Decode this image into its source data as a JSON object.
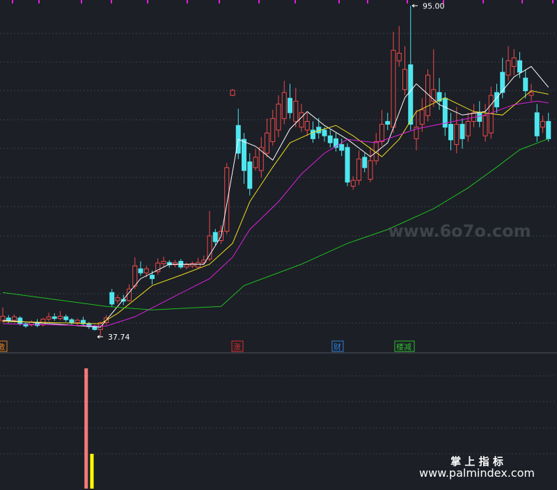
{
  "chart_data": [
    {
      "type": "candlestick",
      "ylim": [
        35.2,
        96.0
      ],
      "up_color": "#f24a4a",
      "down_color": "#4ee6ee",
      "series": {
        "open": [
          40.5,
          41.0,
          40.6,
          41.0,
          40.0,
          39.8,
          40.2,
          39.8,
          40.8,
          41.2,
          40.9,
          41.2,
          40.7,
          40.2,
          40.6,
          40.0,
          39.5,
          39.0,
          40.2,
          45.4,
          44.0,
          44.2,
          44.0,
          46.5,
          49.5,
          48.8,
          48.4,
          49.0,
          50.4,
          50.6,
          50.2,
          50.8,
          49.8,
          50.0,
          49.8,
          50.6,
          51.2,
          55.8,
          54.4,
          56.0,
          79.5,
          74.3,
          71.9,
          68.0,
          67.0,
          66.5,
          69.5,
          71.5,
          73.5,
          75.5,
          79.0,
          75.0,
          74.0,
          73.5,
          73.5,
          74.0,
          73.5,
          72.5,
          72.0,
          71.0,
          70.5,
          63.8,
          64.8,
          68.8,
          65.0,
          68.2,
          71.5,
          75.0,
          74.0,
          85.5,
          80.5,
          84.8,
          72.0,
          74.5,
          76.0,
          78.5,
          80.0,
          79.0,
          74.5,
          71.0,
          74.5,
          72.5,
          75.0,
          76.5,
          72.5,
          73.0,
          80.0,
          83.5,
          83.0,
          84.5,
          85.5,
          82.5,
          79.5,
          76.5,
          74.0,
          75.0
        ],
        "close": [
          41.3,
          40.6,
          41.2,
          40.0,
          39.6,
          40.3,
          39.7,
          40.8,
          41.2,
          40.9,
          41.3,
          40.7,
          40.2,
          40.6,
          40.0,
          39.5,
          39.0,
          40.2,
          41.0,
          43.4,
          44.5,
          43.9,
          46.0,
          50.0,
          48.8,
          49.5,
          47.8,
          50.5,
          50.8,
          50.2,
          50.6,
          49.8,
          50.2,
          50.4,
          50.6,
          51.0,
          55.2,
          54.2,
          56.0,
          67.0,
          80.4,
          69.5,
          66.5,
          63.4,
          68.8,
          70.5,
          73.0,
          75.5,
          78.0,
          80.0,
          76.5,
          78.5,
          76.5,
          75.0,
          72.0,
          73.0,
          72.5,
          71.3,
          70.5,
          70.0,
          64.5,
          64.8,
          68.5,
          67.0,
          68.2,
          71.5,
          74.5,
          74.5,
          87.3,
          86.8,
          84.0,
          74.5,
          74.0,
          77.0,
          83.0,
          80.5,
          78.5,
          74.0,
          71.8,
          74.5,
          72.0,
          75.0,
          76.5,
          75.0,
          76.0,
          79.5,
          77.5,
          80.0,
          85.5,
          86.0,
          83.5,
          80.3,
          80.0,
          72.5,
          75.0,
          72.0
        ],
        "high": [
          42.8,
          41.5,
          41.6,
          41.3,
          40.3,
          40.6,
          40.8,
          41.0,
          41.9,
          41.8,
          42.2,
          41.6,
          41.0,
          40.9,
          41.2,
          40.3,
          39.8,
          40.4,
          41.5,
          46.0,
          45.0,
          45.0,
          46.8,
          51.5,
          50.8,
          50.0,
          49.2,
          51.3,
          51.6,
          51.0,
          51.0,
          51.2,
          50.6,
          50.8,
          51.4,
          51.8,
          59.5,
          56.4,
          57.0,
          67.8,
          80.6,
          77.2,
          73.0,
          69.5,
          70.2,
          72.3,
          75.5,
          77.0,
          79.5,
          82.0,
          81.5,
          80.8,
          78.0,
          76.5,
          75.0,
          75.6,
          74.0,
          73.5,
          73.0,
          72.0,
          71.2,
          65.5,
          70.0,
          69.5,
          70.5,
          73.0,
          77.0,
          76.5,
          90.5,
          91.5,
          88.0,
          95.0,
          77.0,
          79.0,
          84.0,
          87.5,
          82.5,
          80.0,
          76.5,
          77.5,
          75.5,
          76.5,
          78.0,
          78.5,
          78.0,
          81.0,
          81.5,
          86.0,
          88.0,
          87.5,
          87.0,
          84.0,
          81.5,
          78.0,
          76.0,
          76.5
        ],
        "low": [
          40.2,
          40.1,
          40.3,
          39.7,
          39.3,
          39.5,
          39.4,
          39.5,
          40.4,
          40.5,
          40.6,
          40.3,
          39.9,
          39.8,
          39.6,
          39.1,
          38.8,
          37.74,
          39.8,
          43.0,
          43.5,
          43.2,
          43.8,
          46.0,
          48.3,
          48.0,
          46.8,
          48.5,
          49.8,
          49.7,
          49.8,
          49.5,
          49.4,
          49.6,
          49.5,
          50.2,
          50.8,
          53.6,
          53.8,
          55.5,
          79.4,
          68.5,
          64.2,
          62.2,
          66.5,
          65.3,
          68.8,
          70.8,
          72.3,
          74.5,
          75.5,
          74.0,
          73.2,
          72.5,
          71.3,
          72.0,
          71.5,
          70.5,
          69.8,
          69.0,
          63.8,
          63.2,
          64.0,
          66.2,
          64.5,
          67.5,
          70.8,
          73.5,
          73.0,
          84.5,
          79.5,
          73.5,
          70.0,
          73.2,
          75.0,
          77.5,
          77.0,
          72.5,
          70.0,
          69.5,
          70.3,
          71.5,
          74.0,
          74.0,
          71.5,
          72.0,
          76.5,
          79.0,
          82.0,
          83.0,
          82.5,
          79.0,
          78.5,
          71.5,
          73.0,
          71.5
        ]
      },
      "lines": [
        {
          "color": "#ffffff",
          "x": [
            0,
            17,
            20,
            24,
            29,
            35,
            38,
            41,
            44,
            47,
            50,
            53,
            56,
            60,
            64,
            67,
            70,
            72,
            76,
            80,
            84,
            89,
            92,
            95
          ],
          "values": [
            40.6,
            39.4,
            43.0,
            47.8,
            50.3,
            50.3,
            55.1,
            71.9,
            70.7,
            68.3,
            73.7,
            76.7,
            74.3,
            71.9,
            68.9,
            71.3,
            79.1,
            81.5,
            77.9,
            76.1,
            76.7,
            82.7,
            84.5,
            80.9
          ]
        },
        {
          "color": "#f0e020",
          "x": [
            0,
            17,
            20,
            26,
            31,
            36,
            40,
            43,
            47,
            50,
            54,
            58,
            61,
            66,
            69,
            72,
            77,
            82,
            87,
            92,
            95
          ],
          "values": [
            40.4,
            40.0,
            41.8,
            46.6,
            48.4,
            50.3,
            53.9,
            61.1,
            67.1,
            71.3,
            73.1,
            74.3,
            72.5,
            68.9,
            71.9,
            76.7,
            79.1,
            76.7,
            76.1,
            80.3,
            79.7
          ]
        },
        {
          "color": "#e020e0",
          "x": [
            0,
            18,
            23,
            30,
            36,
            40,
            43,
            48,
            52,
            56,
            60,
            65,
            72,
            78,
            84,
            89,
            93,
            95
          ],
          "values": [
            40.0,
            39.6,
            41.2,
            44.8,
            47.8,
            51.5,
            56.3,
            61.1,
            65.9,
            69.5,
            71.9,
            71.3,
            73.7,
            74.9,
            76.1,
            77.9,
            78.5,
            78.2
          ]
        },
        {
          "color": "#20c020",
          "x": [
            0,
            18,
            26,
            38,
            42,
            52,
            60,
            67,
            75,
            81,
            86,
            90,
            95
          ],
          "values": [
            45.4,
            43.0,
            42.4,
            43.0,
            46.6,
            50.3,
            53.9,
            56.3,
            59.9,
            63.5,
            67.1,
            70.1,
            72.0
          ]
        }
      ],
      "annotations": [
        {
          "value": 95,
          "label": "95.00"
        },
        {
          "value": 37.74,
          "label": "37.74"
        }
      ],
      "markers": [
        {
          "label": "激",
          "color": "#e08020"
        },
        {
          "label": "涨",
          "color": "#e03030"
        },
        {
          "label": "财",
          "color": "#3080e0"
        },
        {
          "label": "楼减",
          "color": "#30c030"
        }
      ]
    },
    {
      "type": "bar",
      "ylim": [
        0,
        100
      ],
      "x": [
        15,
        16
      ],
      "values": [
        90,
        26
      ],
      "colors": [
        "#f47a7a",
        "#ffff00"
      ]
    }
  ],
  "watermarks": [
    "www.6o7o.com",
    "掌 上 指 标",
    "www.palmindex.com"
  ]
}
